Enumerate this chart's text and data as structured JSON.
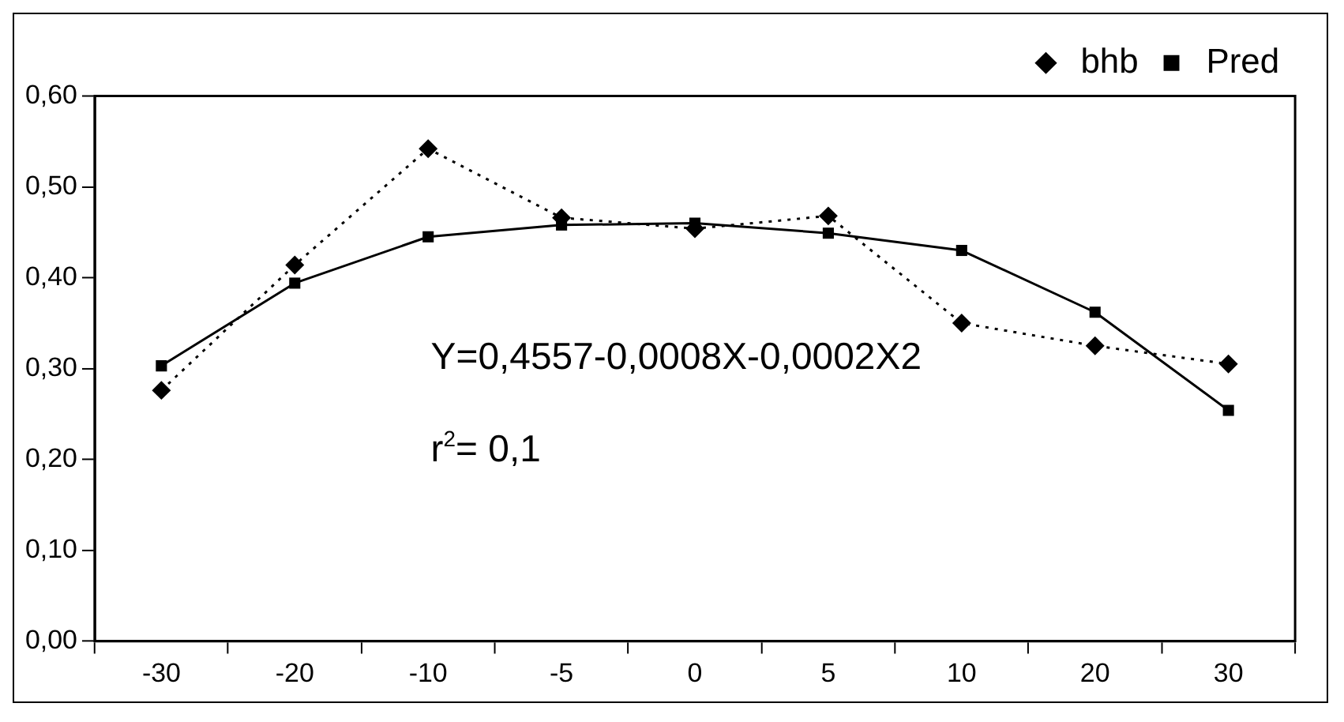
{
  "chart_data": {
    "type": "line",
    "categories": [
      "-30",
      "-20",
      "-10",
      "-5",
      "0",
      "5",
      "10",
      "20",
      "30"
    ],
    "series": [
      {
        "name": "bhb",
        "color": "#000000",
        "marker": "diamond",
        "line_style": "dotted",
        "values": [
          0.276,
          0.414,
          0.542,
          0.466,
          0.454,
          0.468,
          0.35,
          0.325,
          0.305
        ]
      },
      {
        "name": "Pred",
        "color": "#000000",
        "marker": "square",
        "line_style": "solid",
        "values": [
          0.303,
          0.394,
          0.445,
          0.458,
          0.46,
          0.449,
          0.43,
          0.362,
          0.254
        ]
      }
    ],
    "ylim": [
      0,
      0.6
    ],
    "yticks": [
      {
        "value": 0,
        "label": "0,00"
      },
      {
        "value": 0.1,
        "label": "0,10"
      },
      {
        "value": 0.2,
        "label": "0,20"
      },
      {
        "value": 0.3,
        "label": "0,30"
      },
      {
        "value": 0.4,
        "label": "0,40"
      },
      {
        "value": 0.5,
        "label": "0,50"
      },
      {
        "value": 0.6,
        "label": "0,60"
      }
    ],
    "grid": false,
    "legend": "top right",
    "annotations": [
      "Y=0,4557-0,0008X-0,0002X2",
      "r$^{2}$= 0,1"
    ]
  }
}
